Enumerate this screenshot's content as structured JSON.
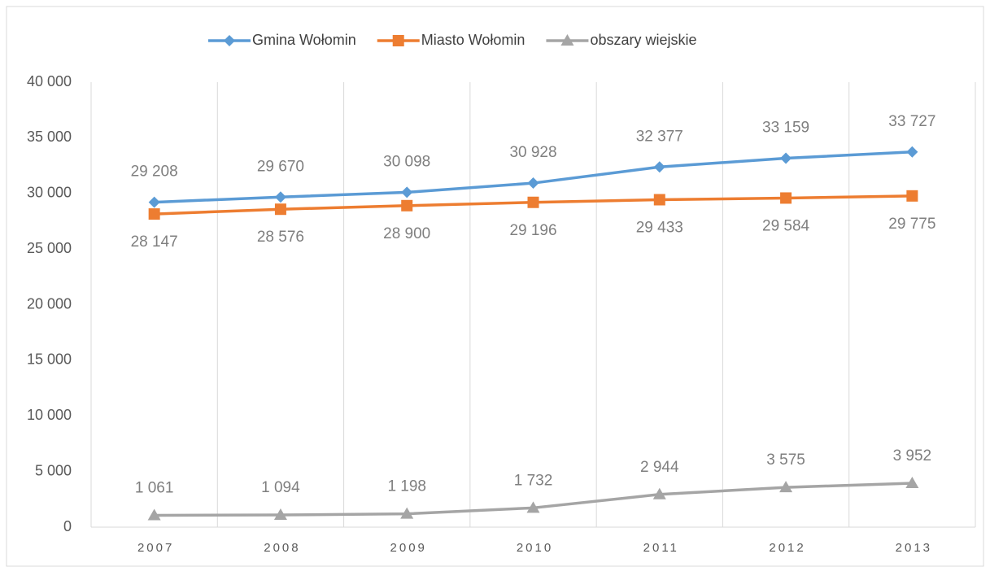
{
  "chart_data": {
    "type": "line",
    "categories": [
      "2007",
      "2008",
      "2009",
      "2010",
      "2011",
      "2012",
      "2013"
    ],
    "series": [
      {
        "name": "Gmina Wołomin",
        "color": "#5b9bd5",
        "marker": "diamond",
        "values": [
          29208,
          29670,
          30098,
          30928,
          32377,
          33159,
          33727
        ],
        "value_labels": [
          "29 208",
          "29 670",
          "30 098",
          "30 928",
          "32 377",
          "33 159",
          "33 727"
        ]
      },
      {
        "name": "Miasto Wołomin",
        "color": "#ed7d31",
        "marker": "square",
        "values": [
          28147,
          28576,
          28900,
          29196,
          29433,
          29584,
          29775
        ],
        "value_labels": [
          "28 147",
          "28 576",
          "28 900",
          "29 196",
          "29 433",
          "29 584",
          "29 775"
        ]
      },
      {
        "name": "obszary wiejskie",
        "color": "#a5a5a5",
        "marker": "triangle",
        "values": [
          1061,
          1094,
          1198,
          1732,
          2944,
          3575,
          3952
        ],
        "value_labels": [
          "1 061",
          "1 094",
          "1 198",
          "1 732",
          "2 944",
          "3 575",
          "3 952"
        ]
      }
    ],
    "ylim": [
      0,
      40000
    ],
    "yticks": [
      0,
      {
        "value": 5000,
        "label": "5 000"
      },
      {
        "value": 10000,
        "label": "10 000"
      },
      {
        "value": 15000,
        "label": "15 000"
      },
      {
        "value": 20000,
        "label": "20 000"
      },
      {
        "value": 25000,
        "label": "25 000"
      },
      {
        "value": 30000,
        "label": "30 000"
      },
      {
        "value": 35000,
        "label": "35 000"
      },
      {
        "value": 40000,
        "label": "40 000"
      }
    ],
    "legend": "top"
  }
}
